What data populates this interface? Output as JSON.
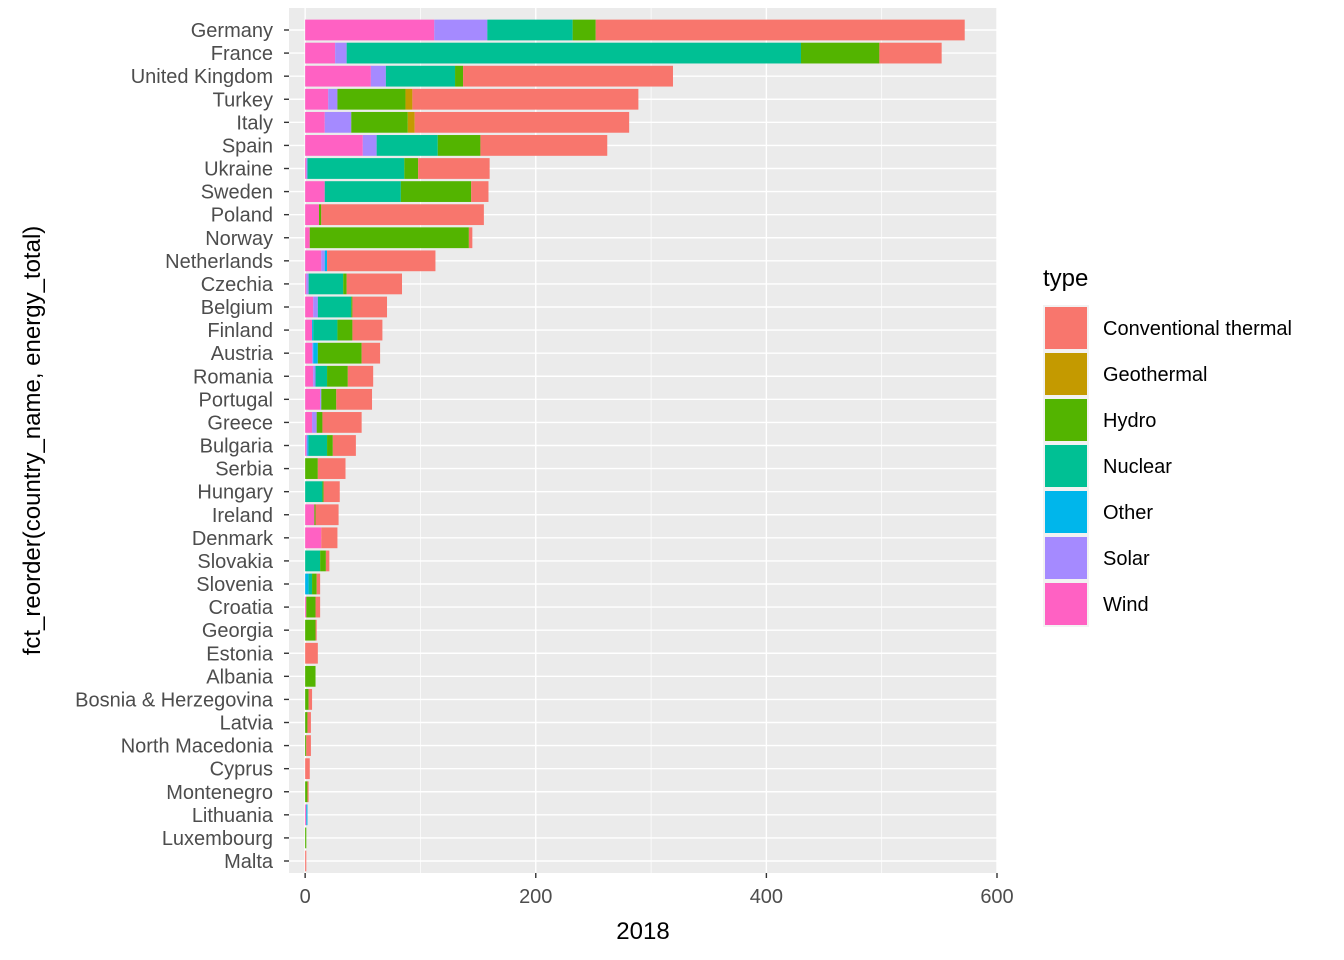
{
  "chart_data": {
    "type": "bar",
    "orientation": "horizontal",
    "stacked": true,
    "xlabel": "2018",
    "ylabel": "fct_reorder(country_name, energy_total)",
    "xlim": [
      -14,
      600
    ],
    "x_ticks": [
      0,
      200,
      400,
      600
    ],
    "grid": true,
    "legend": {
      "title": "type",
      "position": "right"
    },
    "categories": [
      "Germany",
      "France",
      "United Kingdom",
      "Turkey",
      "Italy",
      "Spain",
      "Ukraine",
      "Sweden",
      "Poland",
      "Norway",
      "Netherlands",
      "Czechia",
      "Belgium",
      "Finland",
      "Austria",
      "Romania",
      "Portugal",
      "Greece",
      "Bulgaria",
      "Serbia",
      "Hungary",
      "Ireland",
      "Denmark",
      "Slovakia",
      "Slovenia",
      "Croatia",
      "Georgia",
      "Estonia",
      "Albania",
      "Bosnia & Herzegovina",
      "Latvia",
      "North Macedonia",
      "Cyprus",
      "Montenegro",
      "Lithuania",
      "Luxembourg",
      "Malta"
    ],
    "series": [
      {
        "name": "Wind",
        "color": "#FF61C3",
        "values": [
          112,
          26,
          57,
          20,
          17,
          50,
          1,
          17,
          12,
          4,
          14,
          1,
          7,
          6,
          6,
          7,
          13,
          6,
          1,
          0,
          0,
          8,
          14,
          0,
          0,
          1,
          0,
          0,
          0,
          0,
          0,
          0,
          0,
          0,
          1,
          0,
          0
        ]
      },
      {
        "name": "Solar",
        "color": "#A58AFF",
        "values": [
          46,
          10,
          13,
          8,
          23,
          12,
          1,
          0,
          0,
          0,
          3,
          2,
          4,
          0,
          1,
          2,
          1,
          4,
          1,
          0,
          0,
          0,
          0,
          0,
          0,
          0,
          0,
          0,
          0,
          0,
          0,
          0,
          0,
          0,
          0,
          0,
          0
        ]
      },
      {
        "name": "Other",
        "color": "#00B6EB",
        "values": [
          0,
          0,
          0,
          0,
          0,
          0,
          0,
          0,
          0,
          0,
          2,
          0,
          0,
          1,
          4,
          0,
          0,
          0,
          1,
          0,
          0,
          0,
          0,
          0,
          3,
          0,
          0,
          0,
          0,
          0,
          0,
          0,
          0,
          0,
          1,
          0,
          0
        ]
      },
      {
        "name": "Nuclear",
        "color": "#00C094",
        "values": [
          74,
          394,
          60,
          0,
          0,
          53,
          84,
          66,
          0,
          0,
          0,
          30,
          29,
          21,
          0,
          10,
          0,
          0,
          16,
          0,
          15,
          0,
          0,
          13,
          3,
          0,
          0,
          0,
          0,
          0,
          0,
          0,
          0,
          0,
          0,
          0,
          0
        ]
      },
      {
        "name": "Hydro",
        "color": "#53B400",
        "values": [
          20,
          68,
          7,
          59,
          49,
          37,
          12,
          61,
          2,
          138,
          0,
          3,
          1,
          13,
          38,
          18,
          13,
          5,
          5,
          11,
          1,
          1,
          0,
          5,
          4,
          8,
          9,
          0,
          9,
          3,
          2,
          1,
          0,
          2,
          0,
          1,
          0
        ]
      },
      {
        "name": "Geothermal",
        "color": "#C49A00",
        "values": [
          0,
          0,
          0,
          6,
          6,
          0,
          0,
          0,
          0,
          0,
          0,
          0,
          0,
          0,
          0,
          0,
          0,
          0,
          0,
          0,
          0,
          0,
          0,
          0,
          0,
          0,
          0,
          0,
          0,
          0,
          0,
          0,
          0,
          0,
          0,
          0,
          0
        ]
      },
      {
        "name": "Conventional thermal",
        "color": "#F8766D",
        "values": [
          320,
          54,
          182,
          196,
          186,
          110,
          62,
          15,
          141,
          3,
          94,
          48,
          30,
          26,
          16,
          22,
          31,
          34,
          20,
          24,
          14,
          20,
          14,
          3,
          3,
          4,
          1,
          11,
          0,
          3,
          3,
          4,
          4,
          1,
          0,
          0,
          1
        ]
      }
    ],
    "legend_order": [
      "Conventional thermal",
      "Geothermal",
      "Hydro",
      "Nuclear",
      "Other",
      "Solar",
      "Wind"
    ]
  }
}
